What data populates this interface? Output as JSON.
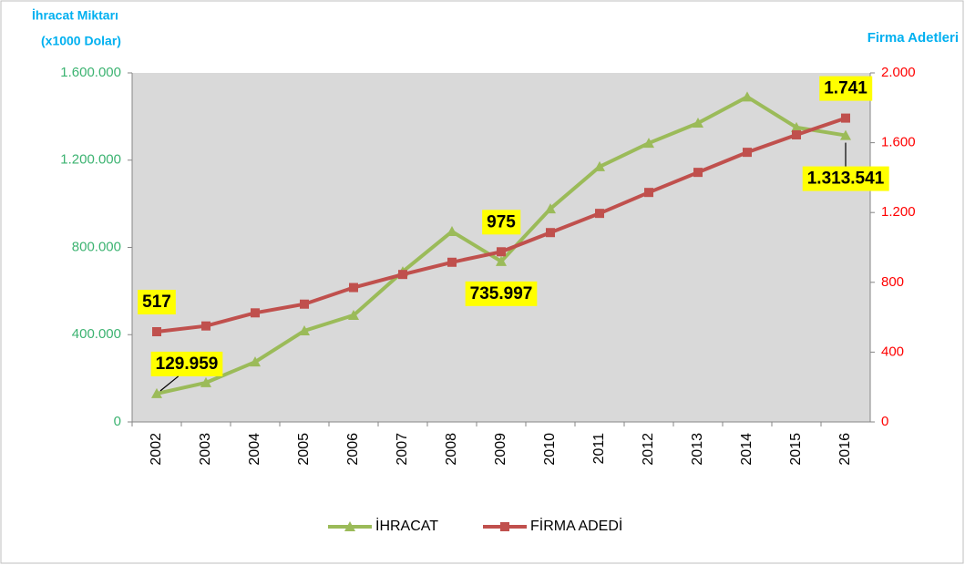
{
  "chart_data": {
    "type": "line",
    "y_label": [
      "İhracat Miktarı",
      "(x1000 Dolar)"
    ],
    "y2_label": "Firma Adetleri",
    "categories": [
      "2002",
      "2003",
      "2004",
      "2005",
      "2006",
      "2007",
      "2008",
      "2009",
      "2010",
      "2011",
      "2012",
      "2013",
      "2014",
      "2015",
      "2016"
    ],
    "series": [
      {
        "name": "İHRACAT",
        "color": "#9bbb59",
        "marker": "triangle",
        "values": [
          129959,
          180000,
          275000,
          418000,
          489000,
          689000,
          873000,
          735997,
          977000,
          1170000,
          1278000,
          1370000,
          1490000,
          1350000,
          1313541
        ],
        "value_labels": [
          "129.959",
          null,
          null,
          null,
          null,
          null,
          null,
          "735.997",
          null,
          null,
          null,
          null,
          null,
          null,
          "1.313.541"
        ]
      },
      {
        "name": "FİRMA ADEDİ",
        "color": "#c0504d",
        "marker": "square",
        "axis": "y2",
        "values": [
          517,
          550,
          625,
          675,
          770,
          845,
          915,
          975,
          1085,
          1195,
          1315,
          1430,
          1545,
          1645,
          1741
        ],
        "value_labels": [
          "517",
          null,
          null,
          null,
          null,
          null,
          null,
          "975",
          null,
          null,
          null,
          null,
          null,
          null,
          "1.741"
        ]
      }
    ],
    "ylim": [
      0,
      1600000
    ],
    "yticks": [
      0,
      {
        "value": 400000,
        "label": "400.000"
      },
      {
        "value": 800000,
        "label": "800.000"
      },
      {
        "value": 1200000,
        "label": "1.200.000"
      },
      {
        "value": 1600000,
        "label": "1.600.000"
      }
    ],
    "y2lim": [
      0,
      2000
    ],
    "y2ticks": [
      0,
      400,
      800,
      {
        "value": 1200,
        "label": "1.200"
      },
      {
        "value": 1600,
        "label": "1.600"
      },
      {
        "value": 2000,
        "label": "2.000"
      }
    ],
    "legend": "bottom"
  }
}
